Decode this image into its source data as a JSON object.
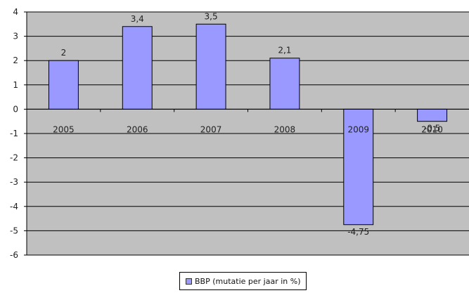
{
  "chart_data": {
    "type": "bar",
    "categories": [
      "2005",
      "2006",
      "2007",
      "2008",
      "2009",
      "2010"
    ],
    "series": [
      {
        "name": "BBP (mutatie per jaar in %)",
        "values": [
          2,
          3.4,
          3.5,
          2.1,
          -4.75,
          -0.5
        ]
      }
    ],
    "data_labels": [
      "2",
      "3,4",
      "3,5",
      "2,1",
      "-4,75",
      "-0,5"
    ],
    "ylim": [
      -6,
      4
    ],
    "y_ticks": [
      4,
      3,
      2,
      1,
      0,
      -1,
      -2,
      -3,
      -4,
      -5,
      -6
    ],
    "grid": true,
    "legend_position": "bottom",
    "colors": {
      "bar": "#9999ff",
      "plot_background": "#c0c0c0",
      "gridline": "#000000"
    }
  }
}
